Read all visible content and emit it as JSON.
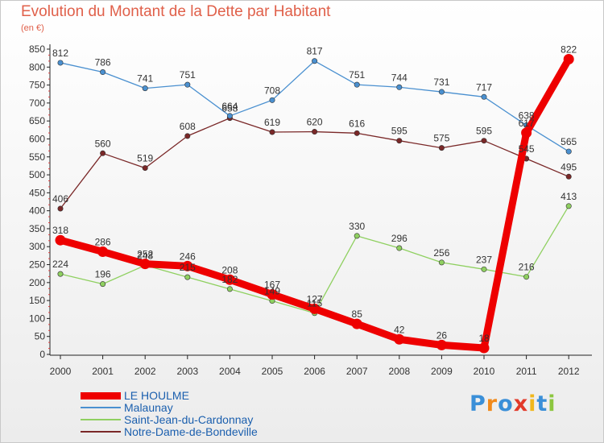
{
  "title": "Evolution du Montant de la Dette par Habitant",
  "unit_label": "(en €)",
  "logo": {
    "letters": [
      "P",
      "r",
      "o",
      "x",
      "i",
      "t",
      "i"
    ],
    "colors": [
      "#3a8fd8",
      "#f08a1c",
      "#3a8fd8",
      "#e23a2a",
      "#f0b71c",
      "#3a8fd8",
      "#8cc63f"
    ]
  },
  "chart_data": {
    "type": "line",
    "title": "Evolution du Montant de la Dette par Habitant",
    "ylabel": "(en €)",
    "xlabel": "",
    "categories": [
      "2000",
      "2001",
      "2002",
      "2003",
      "2004",
      "2005",
      "2006",
      "2007",
      "2008",
      "2009",
      "2010",
      "2011",
      "2012"
    ],
    "ylim": [
      0,
      850
    ],
    "yticks": [
      "0",
      "50",
      "100",
      "150",
      "200",
      "250",
      "300",
      "350",
      "400",
      "450",
      "500",
      "550",
      "600",
      "650",
      "700",
      "750",
      "800",
      "850"
    ],
    "grid": false,
    "legend_position": "bottom-left",
    "series": [
      {
        "name": "LE HOULME",
        "color": "#ee0000",
        "values": [
          318,
          286,
          252,
          246,
          208,
          167,
          127,
          85,
          42,
          26,
          18,
          617,
          822
        ],
        "labels": [
          "318",
          "286",
          "252",
          "246",
          "208",
          "167",
          "127",
          "85",
          "42",
          "26",
          "18",
          "617",
          "822"
        ]
      },
      {
        "name": "Malaunay",
        "color": "#4a90d0",
        "values": [
          812,
          786,
          741,
          751,
          664,
          708,
          817,
          751,
          744,
          731,
          717,
          638,
          565
        ],
        "labels": [
          "812",
          "786",
          "741",
          "751",
          "664",
          "708",
          "817",
          "751",
          "744",
          "731",
          "717",
          "638",
          "565"
        ]
      },
      {
        "name": "Saint-Jean-du-Cardonnay",
        "color": "#8fd060",
        "values": [
          224,
          196,
          248,
          215,
          182,
          149,
          115,
          330,
          296,
          256,
          237,
          216,
          413
        ],
        "labels": [
          "224",
          "196",
          "248",
          "215",
          "182",
          "149",
          "115",
          "330",
          "296",
          "256",
          "237",
          "216",
          "413"
        ]
      },
      {
        "name": "Notre-Dame-de-Bondeville",
        "color": "#7a2828",
        "values": [
          406,
          560,
          519,
          608,
          658,
          619,
          620,
          616,
          595,
          575,
          595,
          545,
          495
        ],
        "labels": [
          "406",
          "560",
          "519",
          "608",
          "658",
          "619",
          "620",
          "616",
          "595",
          "575",
          "595",
          "545",
          "495"
        ]
      }
    ]
  }
}
